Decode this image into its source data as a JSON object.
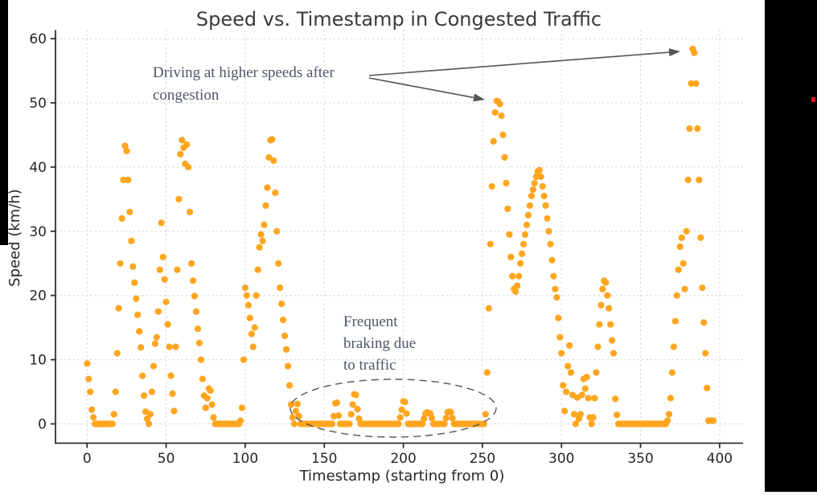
{
  "colors": {
    "marker": "#ffa51e",
    "title_text": "#3b3b3b",
    "axis_text": "#262626",
    "spine": "#2f2f2f",
    "grid": "#cfcfcf",
    "annotation_text": "#4d5766",
    "arrow": "#555555",
    "ellipse": "#555555",
    "side_bar": "#000000",
    "red_mark": "#e8131c"
  },
  "annotations": {
    "higher_speeds": {
      "lines": [
        "Driving at higher speeds after",
        "congestion"
      ],
      "color": "#4d5766"
    },
    "braking": {
      "lines": [
        "Frequent",
        "braking due",
        "to traffic"
      ],
      "color": "#4d5766"
    }
  },
  "chart_data": {
    "type": "scatter",
    "title": "Speed vs. Timestamp in Congested Traffic",
    "xlabel": "Timestamp (starting from 0)",
    "ylabel": "Speed (km/h)",
    "xlim": [
      -19.75,
      414.75
    ],
    "ylim": [
      -2.9,
      61.3
    ],
    "x_ticks": [
      0,
      50,
      100,
      150,
      200,
      250,
      300,
      350,
      400
    ],
    "y_ticks": [
      0,
      10,
      20,
      30,
      40,
      50,
      60
    ],
    "grid": true,
    "legend": "none",
    "marker_color": "#ffa51e",
    "series": [
      {
        "name": "speed",
        "t_start": 0,
        "t_step": 1,
        "values": [
          9.4,
          7,
          5,
          2.2,
          1,
          0,
          0,
          0,
          0,
          0,
          0,
          0,
          0,
          0,
          0,
          0,
          0,
          1.5,
          5,
          11,
          18,
          25,
          32,
          38,
          43.3,
          42.5,
          38,
          33,
          28.5,
          24.5,
          22,
          19.5,
          17,
          14.4,
          11.9,
          7.5,
          4.4,
          1.9,
          0.8,
          0,
          1.5,
          5,
          9,
          12.5,
          13.5,
          17.5,
          24,
          31.3,
          26,
          22.5,
          19,
          15.5,
          12,
          7.5,
          4.7,
          2,
          12,
          24,
          35,
          42,
          44.2,
          43,
          40.5,
          43.5,
          40,
          33,
          25,
          22.3,
          19.9,
          17.5,
          14.8,
          12.6,
          10,
          7,
          4.4,
          2.5,
          4,
          5.5,
          5.2,
          3,
          1,
          0,
          0,
          0,
          0,
          0,
          0,
          0,
          0,
          0,
          0,
          0,
          0,
          0,
          0,
          0,
          0,
          0.5,
          2.5,
          10,
          21.2,
          20,
          18.5,
          16.5,
          14,
          12,
          15,
          20,
          24,
          27.5,
          29.5,
          28.5,
          31,
          34,
          36.8,
          41.5,
          44.2,
          44.3,
          41,
          36,
          30,
          25,
          21.2,
          18.7,
          16.2,
          13.7,
          11.6,
          9,
          6,
          3,
          1,
          0,
          2,
          3.1,
          1.2,
          0,
          0,
          0,
          0,
          0,
          0,
          0,
          0,
          0,
          0,
          0,
          0,
          0,
          0,
          0,
          0,
          0,
          0,
          0,
          0,
          0,
          1.2,
          3.2,
          3.3,
          1.3,
          0,
          0,
          0,
          0,
          0,
          0,
          0,
          1.5,
          3,
          4.6,
          4.5,
          2.3,
          0.8,
          0,
          0,
          0,
          0,
          0,
          0,
          0,
          0,
          0,
          0,
          0,
          0,
          0,
          0,
          0,
          0,
          0,
          0,
          0,
          0,
          0,
          0,
          0,
          0,
          0,
          1,
          2.2,
          3.5,
          3.4,
          1.6,
          0,
          0,
          0,
          0,
          0,
          0,
          0,
          0,
          0,
          0,
          0.8,
          1.6,
          1.8,
          1.7,
          1.6,
          0.9,
          0,
          0,
          0,
          0,
          0,
          0,
          0,
          0,
          0.9,
          1.8,
          1.9,
          1.8,
          0.9,
          0,
          0,
          0,
          0,
          0,
          0,
          0,
          0,
          0,
          0,
          0,
          0,
          0,
          0,
          0,
          0,
          0,
          0,
          0,
          0,
          1.5,
          8,
          18,
          28,
          37,
          44,
          48.5,
          50.3,
          50.2,
          49.8,
          48,
          45,
          41.5,
          37.5,
          33.5,
          29.5,
          26,
          23,
          21,
          20.6,
          21.5,
          23,
          25,
          26.5,
          28,
          29.5,
          31,
          32.5,
          34,
          35.5,
          36.5,
          37.5,
          38.5,
          39.3,
          39.5,
          38.5,
          37,
          35.5,
          34,
          32,
          30,
          28,
          25.5,
          23,
          21,
          19.7,
          16.5,
          13.5,
          11,
          6,
          2,
          5,
          9,
          12.2,
          8,
          4.5,
          1.5,
          0,
          4.1,
          0.8,
          1.5,
          4.5,
          7,
          5.5,
          7.3,
          4,
          1,
          0,
          1,
          4,
          8,
          12,
          15.5,
          18.5,
          21,
          22.3,
          22,
          20,
          18,
          15.5,
          13,
          11,
          3.9,
          1.4,
          0,
          0,
          0,
          0,
          0,
          0,
          0,
          0,
          0,
          0,
          0,
          0,
          0,
          0,
          0,
          0,
          0,
          0,
          0,
          0,
          0,
          0,
          0,
          0,
          0,
          0,
          0,
          0,
          0,
          0,
          0,
          0.5,
          1.5,
          4,
          8,
          12,
          16,
          20,
          24,
          27.6,
          29,
          25,
          21,
          30,
          38,
          46,
          53,
          58.4,
          57.8,
          53,
          46,
          38,
          29,
          21.2,
          15.8,
          11,
          5.6,
          0.5,
          0.5,
          0.5,
          0.5
        ]
      }
    ]
  }
}
